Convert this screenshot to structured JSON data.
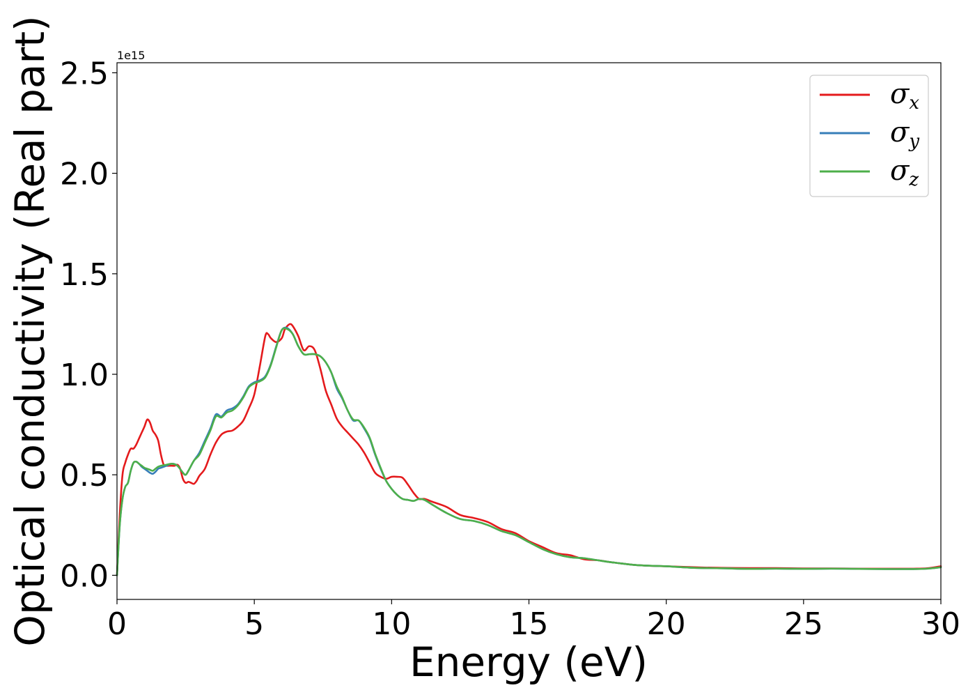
{
  "chart_data": {
    "type": "line",
    "xlabel": "Energy (eV)",
    "ylabel": "Optical conductivity (Real part)",
    "y_offset_label": "1e15",
    "xlim": [
      0,
      30
    ],
    "ylim": [
      -0.12,
      2.55
    ],
    "xticks": [
      0,
      5,
      10,
      15,
      20,
      25,
      30
    ],
    "xtick_labels": [
      "0",
      "5",
      "10",
      "15",
      "20",
      "25",
      "30"
    ],
    "yticks": [
      0.0,
      0.5,
      1.0,
      1.5,
      2.0,
      2.5
    ],
    "ytick_labels": [
      "0.0",
      "0.5",
      "1.0",
      "1.5",
      "2.0",
      "2.5"
    ],
    "grid": false,
    "legend_position": "top-right",
    "series": [
      {
        "name": "σx",
        "symbol": "σ",
        "subscript": "x",
        "color": "#e41a1c",
        "x": [
          0,
          0.1,
          0.2,
          0.3,
          0.4,
          0.5,
          0.6,
          0.7,
          0.8,
          0.9,
          1.0,
          1.1,
          1.2,
          1.3,
          1.4,
          1.5,
          1.6,
          1.7,
          1.8,
          1.9,
          2.0,
          2.1,
          2.2,
          2.3,
          2.4,
          2.5,
          2.6,
          2.7,
          2.8,
          2.9,
          3.0,
          3.2,
          3.4,
          3.6,
          3.8,
          4.0,
          4.2,
          4.4,
          4.6,
          4.8,
          5.0,
          5.2,
          5.4,
          5.5,
          5.6,
          5.8,
          6.0,
          6.1,
          6.2,
          6.3,
          6.4,
          6.6,
          6.8,
          7.0,
          7.2,
          7.4,
          7.6,
          7.8,
          8.0,
          8.2,
          8.4,
          8.6,
          8.8,
          9.0,
          9.2,
          9.4,
          9.6,
          9.8,
          10.0,
          10.2,
          10.4,
          10.6,
          10.8,
          11.0,
          11.2,
          11.5,
          12.0,
          12.5,
          13.0,
          13.5,
          14.0,
          14.5,
          15.0,
          15.5,
          16.0,
          16.5,
          17.0,
          17.5,
          18.0,
          19.0,
          20.0,
          21.0,
          22.0,
          23.0,
          24.0,
          25.0,
          26.0,
          27.0,
          28.0,
          29.0,
          29.5,
          30.0
        ],
        "y": [
          0.0,
          0.3,
          0.5,
          0.56,
          0.6,
          0.63,
          0.63,
          0.65,
          0.68,
          0.71,
          0.74,
          0.775,
          0.76,
          0.72,
          0.7,
          0.67,
          0.6,
          0.55,
          0.545,
          0.545,
          0.545,
          0.545,
          0.55,
          0.53,
          0.48,
          0.46,
          0.465,
          0.46,
          0.455,
          0.47,
          0.495,
          0.53,
          0.6,
          0.66,
          0.7,
          0.715,
          0.72,
          0.74,
          0.77,
          0.83,
          0.9,
          1.04,
          1.19,
          1.2,
          1.18,
          1.16,
          1.18,
          1.22,
          1.24,
          1.25,
          1.24,
          1.19,
          1.12,
          1.14,
          1.12,
          1.03,
          0.92,
          0.85,
          0.78,
          0.74,
          0.71,
          0.68,
          0.65,
          0.61,
          0.56,
          0.51,
          0.49,
          0.48,
          0.49,
          0.49,
          0.485,
          0.45,
          0.41,
          0.38,
          0.38,
          0.365,
          0.34,
          0.3,
          0.285,
          0.265,
          0.23,
          0.21,
          0.17,
          0.14,
          0.11,
          0.1,
          0.08,
          0.075,
          0.065,
          0.05,
          0.045,
          0.04,
          0.037,
          0.036,
          0.036,
          0.034,
          0.034,
          0.033,
          0.033,
          0.033,
          0.035,
          0.045
        ]
      },
      {
        "name": "σy",
        "symbol": "σ",
        "subscript": "y",
        "color": "#377eb8",
        "x": [
          0,
          0.1,
          0.2,
          0.3,
          0.4,
          0.5,
          0.6,
          0.7,
          0.8,
          0.9,
          1.0,
          1.1,
          1.2,
          1.3,
          1.4,
          1.5,
          1.6,
          1.8,
          2.0,
          2.2,
          2.4,
          2.5,
          2.6,
          2.8,
          3.0,
          3.2,
          3.4,
          3.6,
          3.8,
          4.0,
          4.2,
          4.4,
          4.6,
          4.8,
          5.0,
          5.2,
          5.4,
          5.6,
          5.8,
          6.0,
          6.2,
          6.4,
          6.6,
          6.8,
          7.0,
          7.2,
          7.4,
          7.6,
          7.8,
          8.0,
          8.2,
          8.4,
          8.6,
          8.8,
          9.0,
          9.2,
          9.4,
          9.6,
          9.8,
          10.0,
          10.2,
          10.4,
          10.6,
          10.8,
          11.0,
          11.2,
          11.5,
          12.0,
          12.5,
          13.0,
          13.5,
          14.0,
          14.5,
          15.0,
          15.5,
          16.0,
          16.5,
          17.0,
          17.5,
          18.0,
          19.0,
          20.0,
          21.0,
          22.0,
          23.0,
          24.0,
          25.0,
          26.0,
          27.0,
          28.0,
          29.0,
          29.5,
          30.0
        ],
        "y": [
          0.0,
          0.25,
          0.38,
          0.44,
          0.46,
          0.52,
          0.56,
          0.565,
          0.555,
          0.54,
          0.53,
          0.52,
          0.51,
          0.505,
          0.515,
          0.53,
          0.535,
          0.545,
          0.555,
          0.545,
          0.51,
          0.5,
          0.52,
          0.57,
          0.61,
          0.67,
          0.73,
          0.8,
          0.79,
          0.82,
          0.83,
          0.85,
          0.89,
          0.94,
          0.96,
          0.97,
          0.99,
          1.05,
          1.14,
          1.22,
          1.23,
          1.2,
          1.14,
          1.1,
          1.1,
          1.1,
          1.09,
          1.06,
          1.01,
          0.93,
          0.88,
          0.82,
          0.77,
          0.77,
          0.73,
          0.68,
          0.6,
          0.53,
          0.47,
          0.43,
          0.4,
          0.38,
          0.375,
          0.37,
          0.38,
          0.375,
          0.35,
          0.31,
          0.28,
          0.27,
          0.25,
          0.22,
          0.2,
          0.165,
          0.13,
          0.105,
          0.09,
          0.085,
          0.075,
          0.065,
          0.05,
          0.045,
          0.037,
          0.035,
          0.032,
          0.033,
          0.032,
          0.033,
          0.032,
          0.031,
          0.031,
          0.033,
          0.04
        ]
      },
      {
        "name": "σz",
        "symbol": "σ",
        "subscript": "z",
        "color": "#4daf4a",
        "x": [
          0,
          0.1,
          0.2,
          0.3,
          0.4,
          0.5,
          0.6,
          0.7,
          0.8,
          0.9,
          1.0,
          1.1,
          1.2,
          1.3,
          1.4,
          1.5,
          1.6,
          1.8,
          2.0,
          2.2,
          2.4,
          2.5,
          2.6,
          2.8,
          3.0,
          3.2,
          3.4,
          3.6,
          3.8,
          4.0,
          4.2,
          4.4,
          4.6,
          4.8,
          5.0,
          5.2,
          5.4,
          5.6,
          5.8,
          6.0,
          6.2,
          6.4,
          6.6,
          6.8,
          7.0,
          7.2,
          7.4,
          7.6,
          7.8,
          8.0,
          8.2,
          8.4,
          8.6,
          8.8,
          9.0,
          9.2,
          9.4,
          9.6,
          9.8,
          10.0,
          10.2,
          10.4,
          10.6,
          10.8,
          11.0,
          11.2,
          11.5,
          12.0,
          12.5,
          13.0,
          13.5,
          14.0,
          14.5,
          15.0,
          15.5,
          16.0,
          16.5,
          17.0,
          17.5,
          18.0,
          19.0,
          20.0,
          21.0,
          22.0,
          23.0,
          24.0,
          25.0,
          26.0,
          27.0,
          28.0,
          29.0,
          29.5,
          30.0
        ],
        "y": [
          0.0,
          0.25,
          0.38,
          0.44,
          0.46,
          0.52,
          0.56,
          0.565,
          0.555,
          0.545,
          0.535,
          0.53,
          0.525,
          0.52,
          0.53,
          0.54,
          0.545,
          0.55,
          0.555,
          0.545,
          0.51,
          0.5,
          0.52,
          0.57,
          0.6,
          0.66,
          0.72,
          0.79,
          0.785,
          0.81,
          0.82,
          0.845,
          0.885,
          0.935,
          0.955,
          0.965,
          0.985,
          1.045,
          1.135,
          1.22,
          1.225,
          1.2,
          1.14,
          1.1,
          1.1,
          1.1,
          1.09,
          1.06,
          1.01,
          0.94,
          0.885,
          0.82,
          0.775,
          0.77,
          0.735,
          0.685,
          0.605,
          0.535,
          0.47,
          0.43,
          0.4,
          0.38,
          0.375,
          0.37,
          0.38,
          0.375,
          0.35,
          0.31,
          0.28,
          0.27,
          0.25,
          0.22,
          0.2,
          0.165,
          0.13,
          0.105,
          0.09,
          0.085,
          0.075,
          0.065,
          0.05,
          0.045,
          0.037,
          0.035,
          0.032,
          0.033,
          0.032,
          0.033,
          0.032,
          0.031,
          0.031,
          0.033,
          0.04
        ]
      }
    ]
  }
}
